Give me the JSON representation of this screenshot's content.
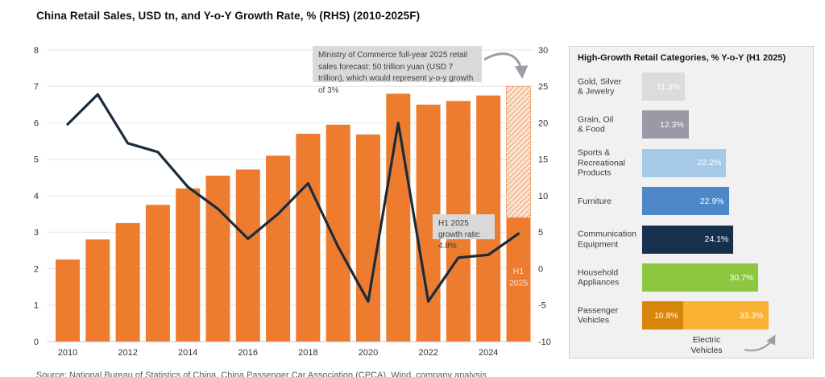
{
  "chart_data": [
    {
      "type": "bar",
      "subtype": "bar-with-line-overlay",
      "title": "China Retail Sales, USD tn, and Y-o-Y Growth Rate, % (RHS) (2010-2025F)",
      "categories": [
        "2010",
        "2011",
        "2012",
        "2013",
        "2014",
        "2015",
        "2016",
        "2017",
        "2018",
        "2019",
        "2020",
        "2021",
        "2022",
        "2023",
        "2024",
        "2025"
      ],
      "x_tick_labels": [
        "2010",
        "2012",
        "2014",
        "2016",
        "2018",
        "2020",
        "2022",
        "2024"
      ],
      "series": [
        {
          "name": "Retail sales, USD tn (LHS, bars)",
          "type": "bar",
          "color": "#ED7C2F",
          "values": [
            2.25,
            2.8,
            3.25,
            3.75,
            4.2,
            4.55,
            4.72,
            5.1,
            5.7,
            5.95,
            5.68,
            6.8,
            6.5,
            6.6,
            6.75,
            7.0
          ]
        },
        {
          "name": "Y-o-Y growth rate, % (RHS, line)",
          "type": "line",
          "color": "#1C2B3A",
          "values": [
            19.8,
            23.9,
            17.2,
            16.0,
            11.2,
            8.2,
            4.1,
            7.5,
            11.7,
            3.0,
            -4.5,
            20.0,
            -4.5,
            1.5,
            1.9,
            4.8
          ]
        }
      ],
      "left_axis": {
        "min": 0,
        "max": 8,
        "ticks": [
          8,
          7,
          6,
          5,
          4,
          3,
          2,
          1,
          0
        ]
      },
      "right_axis": {
        "min": -10,
        "max": 30,
        "ticks": [
          30,
          25,
          20,
          15,
          10,
          5,
          0,
          -5,
          -10
        ]
      },
      "grid": true,
      "forecast_bar": {
        "category": "2025",
        "solid_value": 3.4,
        "total_value": 7.0,
        "style": "hatched",
        "in_bar_label": "H1 2025",
        "hatch_bg": "#FBE4D4",
        "hatch_line": "#EE8A52"
      },
      "annotations": [
        {
          "text": "Ministry of Commerce full-year 2025 retail sales forecast: 50 trillion yuan (USD 7 trillion), which would represent y-o-y growth of 3%"
        },
        {
          "text": "H1 2025 growth rate: 4.8%"
        }
      ]
    },
    {
      "type": "bar",
      "orientation": "horizontal",
      "title": "High-Growth Retail Categories, % Y-o-Y (H1 2025)",
      "unit": "%",
      "rows": [
        {
          "label": "Gold, Silver\n& Jewelry",
          "value": 11.3,
          "value_label": "11.3%",
          "color": "#DCDCDC"
        },
        {
          "label": "Grain, Oil\n& Food",
          "value": 12.3,
          "value_label": "12.3%",
          "color": "#9C98A8"
        },
        {
          "label": "Sports &\nRecreational\nProducts",
          "value": 22.2,
          "value_label": "22.2%",
          "color": "#A6C9E8"
        },
        {
          "label": "Furniture",
          "value": 22.9,
          "value_label": "22.9%",
          "color": "#4D87C7"
        },
        {
          "label": "Communication\nEquipment",
          "value": 24.1,
          "value_label": "24.1%",
          "color": "#17304E"
        },
        {
          "label": "Household\nAppliances",
          "value": 30.7,
          "value_label": "30.7%",
          "color": "#8DC63F"
        },
        {
          "label": "Passenger\nVehicles",
          "value": 10.8,
          "value_label": "10.8%",
          "color": "#D8860B",
          "overlay": {
            "label": "Electric Vehicles",
            "value": 33.3,
            "value_label": "33.3%",
            "color": "#F9B233"
          }
        }
      ],
      "overlay_annotation": {
        "label": "Electric\nVehicles"
      }
    }
  ],
  "source_note": "Source: National Bureau of Statistics of China, China Passenger Car Association (CPCA), Wind, company analysis"
}
